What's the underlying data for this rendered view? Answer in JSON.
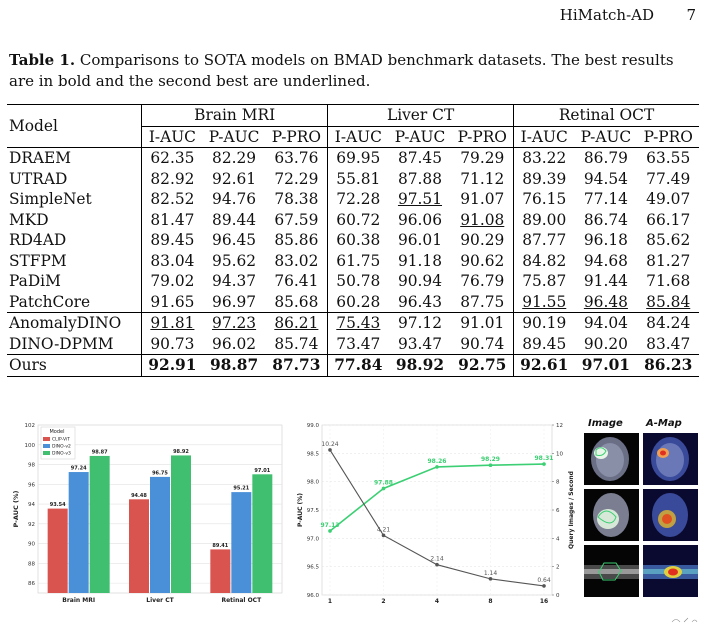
{
  "header": {
    "running_title": "HiMatch-AD",
    "page_number": "7"
  },
  "caption": {
    "label": "Table 1.",
    "text": "Comparisons to SOTA models on BMAD benchmark datasets. The best results are in bold and the second best are underlined."
  },
  "table": {
    "model_header": "Model",
    "groups": [
      "Brain MRI",
      "Liver CT",
      "Retinal OCT"
    ],
    "metrics": [
      "I-AUC",
      "P-AUC",
      "P-PRO"
    ],
    "rows": [
      {
        "model": "DRAEM",
        "v": [
          "62.35",
          "82.29",
          "63.76",
          "69.95",
          "87.45",
          "79.29",
          "83.22",
          "86.79",
          "63.55"
        ]
      },
      {
        "model": "UTRAD",
        "v": [
          "82.92",
          "92.61",
          "72.29",
          "55.81",
          "87.88",
          "71.12",
          "89.39",
          "94.54",
          "77.49"
        ]
      },
      {
        "model": "SimpleNet",
        "v": [
          "82.52",
          "94.76",
          "78.38",
          "72.28",
          "97.51",
          "91.07",
          "76.15",
          "77.14",
          "49.07"
        ]
      },
      {
        "model": "MKD",
        "v": [
          "81.47",
          "89.44",
          "67.59",
          "60.72",
          "96.06",
          "91.08",
          "89.00",
          "86.74",
          "66.17"
        ]
      },
      {
        "model": "RD4AD",
        "v": [
          "89.45",
          "96.45",
          "85.86",
          "60.38",
          "96.01",
          "90.29",
          "87.77",
          "96.18",
          "85.62"
        ]
      },
      {
        "model": "STFPM",
        "v": [
          "83.04",
          "95.62",
          "83.02",
          "61.75",
          "91.18",
          "90.62",
          "84.82",
          "94.68",
          "81.27"
        ]
      },
      {
        "model": "PaDiM",
        "v": [
          "79.02",
          "94.37",
          "76.41",
          "50.78",
          "90.94",
          "76.79",
          "75.87",
          "91.44",
          "71.68"
        ]
      },
      {
        "model": "PatchCore",
        "v": [
          "91.65",
          "96.97",
          "85.68",
          "60.28",
          "96.43",
          "87.75",
          "91.55",
          "96.48",
          "85.84"
        ]
      },
      {
        "model": "AnomalyDINO",
        "v": [
          "91.81",
          "97.23",
          "86.21",
          "75.43",
          "97.12",
          "91.01",
          "90.19",
          "94.04",
          "84.24"
        ]
      },
      {
        "model": "DINO-DPMM",
        "v": [
          "90.73",
          "96.02",
          "85.74",
          "73.47",
          "93.47",
          "90.74",
          "89.45",
          "90.20",
          "83.47"
        ]
      },
      {
        "model": "Ours",
        "v": [
          "92.91",
          "98.87",
          "87.73",
          "77.84",
          "98.92",
          "92.75",
          "92.61",
          "97.01",
          "86.23"
        ]
      }
    ]
  },
  "chart_data": [
    {
      "type": "bar",
      "title": "",
      "ylabel": "P-AUC (%)",
      "xlabel": "",
      "ylim": [
        85,
        102
      ],
      "yticks": [
        "86",
        "88",
        "90",
        "92",
        "94",
        "96",
        "98",
        "100",
        "102"
      ],
      "legend": {
        "title": "Model",
        "placement": "top-left"
      },
      "categories": [
        "Brain MRI",
        "Liver CT",
        "Retinal OCT"
      ],
      "series": [
        {
          "name": "CLIP-ViT",
          "color": "#d9534f",
          "values": [
            93.54,
            94.48,
            89.41
          ]
        },
        {
          "name": "DINO-v2",
          "color": "#4a90d9",
          "values": [
            97.24,
            96.75,
            95.21
          ]
        },
        {
          "name": "DINO-v3",
          "color": "#3fbf6f",
          "values": [
            98.87,
            98.92,
            97.01
          ]
        }
      ],
      "grid": true
    },
    {
      "type": "line",
      "title": "",
      "xlabel": "",
      "ylabel_left": "P-AUC (%)",
      "ylabel_right": "Query Images / Second",
      "x": [
        "1",
        "2",
        "4",
        "8",
        "16"
      ],
      "ylim_left": [
        96.0,
        99.0
      ],
      "yticks_left": [
        "96.0",
        "96.5",
        "97.0",
        "97.5",
        "98.0",
        "98.5",
        "99.0"
      ],
      "ylim_right": [
        0,
        12
      ],
      "yticks_right": [
        "0",
        "2",
        "4",
        "6",
        "8",
        "10",
        "12"
      ],
      "series": [
        {
          "axis": "left",
          "color": "#3ccf73",
          "values": [
            97.13,
            97.88,
            98.26,
            98.29,
            98.31
          ],
          "labels": [
            "97.13",
            "97.88",
            "98.26",
            "98.29",
            "98.31"
          ]
        },
        {
          "axis": "right",
          "color": "#555555",
          "values": [
            10.24,
            4.21,
            2.14,
            1.14,
            0.64
          ],
          "labels": [
            "10.24",
            "4.21",
            "2.14",
            "1.14",
            "0.64"
          ]
        }
      ],
      "grid": true
    }
  ],
  "image_grid": {
    "col_headers": [
      "Image",
      "A-Map"
    ]
  }
}
